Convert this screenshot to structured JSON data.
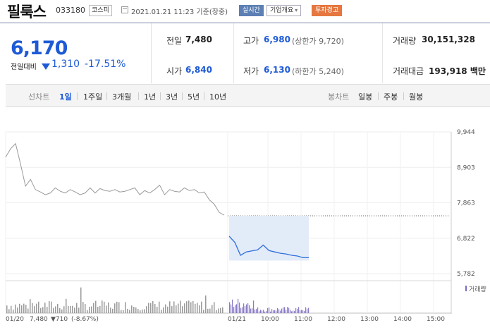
{
  "stock": {
    "name": "필룩스",
    "code": "033180",
    "market": "코스피",
    "timestamp": "2021.01.21 11:23 기준(장중)",
    "btn_realtime": "실시간",
    "btn_company": "기업개요",
    "btn_warning": "투자경고"
  },
  "price": {
    "current": "6,170",
    "change_label": "전일대비",
    "change": "1,310",
    "change_pct": "-17.51%"
  },
  "summary": {
    "prev_label": "전일",
    "prev": "7,480",
    "high_label": "고가",
    "high": "6,980",
    "upper_limit": "(상한가 9,720)",
    "volume_label": "거래량",
    "volume": "30,151,328",
    "open_label": "시가",
    "open": "6,840",
    "low_label": "저가",
    "low": "6,130",
    "lower_limit": "(하한가 5,240)",
    "amount_label": "거래대금",
    "amount": "193,918 백만"
  },
  "tabs": {
    "line_label": "선차트",
    "line_items": [
      "1일",
      "1주일",
      "3개월",
      "1년",
      "3년",
      "5년",
      "10년"
    ],
    "candle_label": "봉차트",
    "candle_items": [
      "일봉",
      "주봉",
      "월봉"
    ]
  },
  "colors": {
    "accent": "#1e5ad6",
    "warning": "#e5773f",
    "realtime": "#5c7fb4"
  },
  "chart_data": {
    "type": "line",
    "y_ticks": [
      "9,944",
      "8,903",
      "7,863",
      "6,822",
      "5,782"
    ],
    "ylim": [
      5782,
      9944
    ],
    "prev_close": 7480,
    "volume_label": "거래량",
    "x_labels": [
      "01/20",
      "01/21",
      "10:00",
      "11:00",
      "12:00",
      "13:00",
      "14:00",
      "15:00"
    ],
    "prev_day_label": "01/20",
    "prev_day_close": "7,480",
    "prev_day_change": "▼710",
    "prev_day_pct": "(-8.67%)",
    "series": [
      {
        "values": [
          9200,
          9450,
          9600,
          9000,
          8350,
          8550,
          8250,
          8180,
          8100,
          8150,
          8300,
          8200,
          8150,
          8250,
          8180,
          8100,
          8150,
          8300,
          8150,
          8280,
          8220,
          8200,
          8250,
          8180,
          8200,
          8250,
          8300,
          8100,
          8220,
          8150,
          8250,
          8380,
          8100,
          8250,
          8200,
          8180,
          8300,
          8220,
          8250,
          8150,
          8180,
          7950,
          7820,
          7580,
          7500
        ]
      },
      {
        "values": [
          6880,
          6700,
          6320,
          6420,
          6450,
          6480,
          6620,
          6460,
          6420,
          6380,
          6360,
          6320,
          6300,
          6250,
          6250
        ]
      }
    ]
  }
}
